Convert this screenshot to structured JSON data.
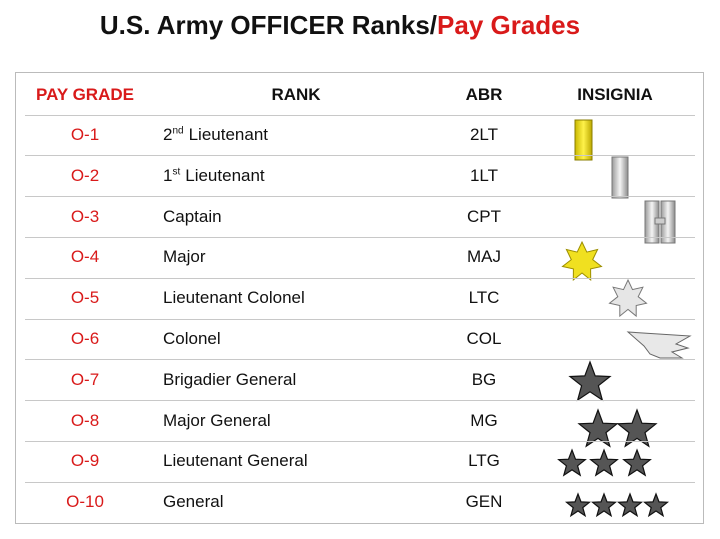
{
  "header": {
    "title_main": "U.S. Army OFFICER Ranks/",
    "title_accent": "Pay Grades"
  },
  "table": {
    "columns": [
      "PAY GRADE",
      "RANK",
      "ABR",
      "INSIGNIA"
    ],
    "rows": [
      {
        "grade": "O-1",
        "rank": {
          "main": "2",
          "sup": "nd",
          "rest": "Lieutenant"
        },
        "abr": "2LT"
      },
      {
        "grade": "O-2",
        "rank": {
          "main": "1",
          "sup": "st",
          "rest": "Lieutenant"
        },
        "abr": "1LT"
      },
      {
        "grade": "O-3",
        "rank": "Captain",
        "abr": "CPT"
      },
      {
        "grade": "O-4",
        "rank": "Major",
        "abr": "MAJ"
      },
      {
        "grade": "O-5",
        "rank": "Lieutenant Colonel",
        "abr": "LTC"
      },
      {
        "grade": "O-6",
        "rank": "Colonel",
        "abr": "COL"
      },
      {
        "grade": "O-7",
        "rank": "Brigadier General",
        "abr": "BG"
      },
      {
        "grade": "O-8",
        "rank": "Major General",
        "abr": "MG"
      },
      {
        "grade": "O-9",
        "rank": "Lieutenant General",
        "abr": "LTG"
      },
      {
        "grade": "O-10",
        "rank": "General",
        "abr": "GEN"
      }
    ]
  }
}
